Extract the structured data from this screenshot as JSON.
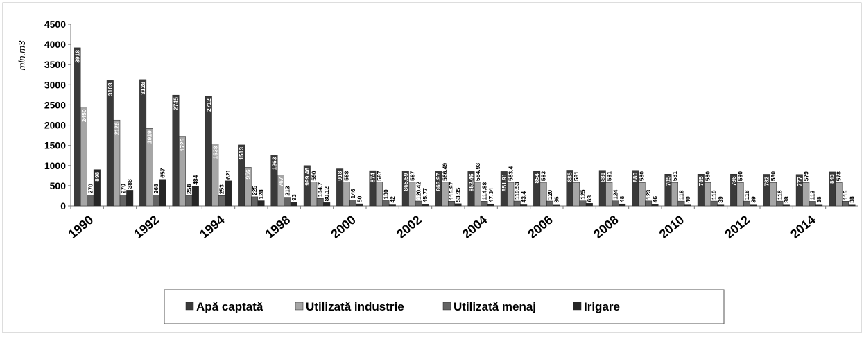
{
  "chart_data": {
    "type": "bar",
    "y_label": "mln.m3",
    "categories": [
      "1990",
      null,
      "1992",
      null,
      "1994",
      null,
      "1998",
      null,
      "2000",
      null,
      "2002",
      null,
      "2004",
      null,
      "2006",
      null,
      "2008",
      null,
      "2010",
      null,
      "2012",
      null,
      "2014",
      null
    ],
    "series": [
      {
        "name": "Apă captată",
        "color": "#3a3a3a",
        "values": [
          3918,
          3103,
          3128,
          2745,
          2712,
          1513,
          1263,
          999.46,
          918,
          874,
          865.59,
          863.97,
          852.46,
          851.91,
          854,
          885,
          881,
          880,
          785,
          785,
          786,
          782,
          777,
          843
        ]
      },
      {
        "name": "Utilizată industrie",
        "color": "#a6a6a6",
        "values": [
          2450,
          2126,
          1919,
          1725,
          1538,
          956,
          767,
          590,
          588,
          587,
          587,
          586.49,
          584.93,
          583.4,
          583,
          581,
          581,
          580,
          581,
          580,
          580,
          580,
          579,
          578
        ]
      },
      {
        "name": "Utilizată menaj",
        "color": "#646464",
        "values": [
          270,
          270,
          268,
          258,
          253,
          225,
          213,
          184.7,
          146,
          130,
          120.42,
          115.97,
          114.88,
          119.53,
          120,
          125,
          124,
          123,
          118,
          119,
          118,
          118,
          113,
          115
        ]
      },
      {
        "name": "Irigare",
        "color": "#262626",
        "values": [
          898,
          388,
          657,
          484,
          621,
          128,
          93,
          80.12,
          50,
          42,
          45.77,
          53.95,
          47.34,
          43.4,
          36,
          63,
          48,
          46,
          40,
          39,
          39,
          38,
          38,
          38
        ]
      }
    ],
    "ylim": [
      0,
      4500
    ],
    "yticks": [
      0,
      500,
      1000,
      1500,
      2000,
      2500,
      3000,
      3500,
      4000,
      4500
    ],
    "legend": "bottom"
  }
}
